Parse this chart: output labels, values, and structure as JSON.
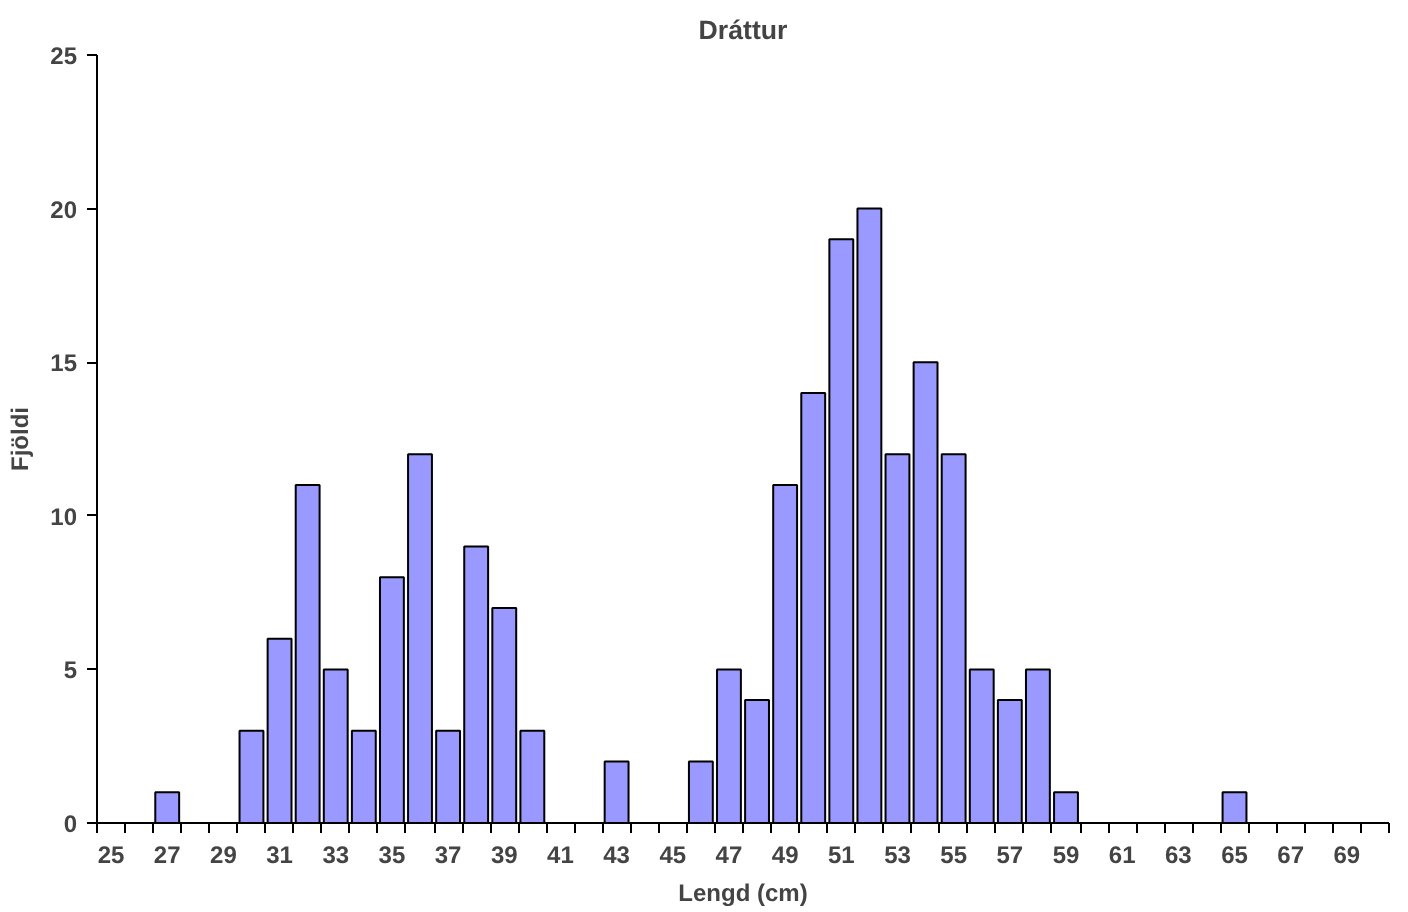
{
  "chart_data": {
    "type": "bar",
    "title": "Dráttur",
    "xlabel": "Lengd (cm)",
    "ylabel": "Fjöldi",
    "categories": [
      "25",
      null,
      "27",
      null,
      "29",
      null,
      "31",
      null,
      "33",
      null,
      "35",
      null,
      "37",
      null,
      "39",
      null,
      "41",
      null,
      "43",
      null,
      "45",
      null,
      "47",
      null,
      "49",
      null,
      "51",
      null,
      "53",
      null,
      "55",
      null,
      "57",
      null,
      "59",
      null,
      "61",
      null,
      "63",
      null,
      "65",
      null,
      "67",
      null,
      "69",
      null
    ],
    "values": [
      0,
      0,
      1,
      0,
      0,
      3,
      6,
      11,
      5,
      3,
      8,
      12,
      3,
      9,
      7,
      3,
      0,
      0,
      2,
      0,
      0,
      2,
      5,
      4,
      11,
      14,
      19,
      20,
      12,
      15,
      12,
      5,
      4,
      5,
      1,
      0,
      0,
      0,
      0,
      0,
      1,
      0,
      0,
      0,
      0,
      0
    ],
    "color": "#9999ff",
    "ylim": [
      0,
      25
    ],
    "yticks": [
      0,
      5,
      10,
      15,
      20,
      25
    ],
    "grid": false
  }
}
